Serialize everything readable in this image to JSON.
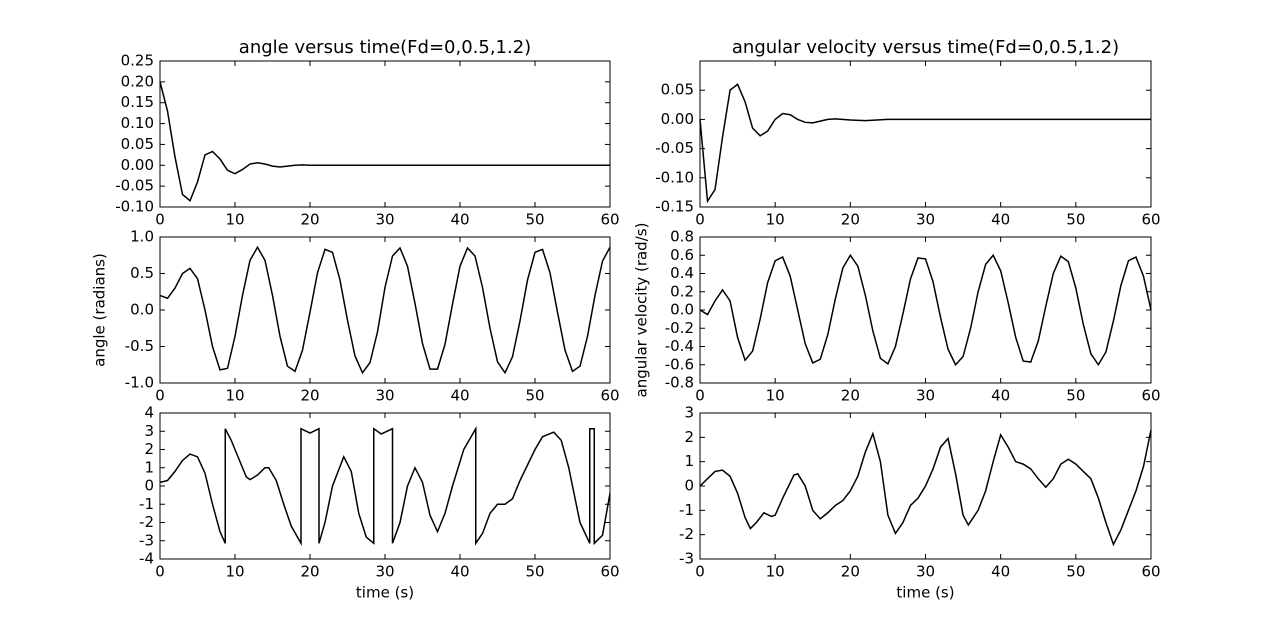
{
  "chart_data": [
    {
      "type": "line",
      "title": "angle versus time(Fd=0,0.5,1.2)",
      "color": "#000000",
      "x": [
        0,
        1,
        2,
        3,
        4,
        5,
        6,
        7,
        8,
        9,
        10,
        11,
        12,
        13,
        14,
        15,
        16,
        17,
        18,
        19,
        20,
        25,
        30,
        40,
        50,
        60
      ],
      "values": [
        0.2,
        0.13,
        0.02,
        -0.07,
        -0.085,
        -0.04,
        0.025,
        0.033,
        0.015,
        -0.012,
        -0.02,
        -0.01,
        0.003,
        0.006,
        0.003,
        -0.002,
        -0.004,
        -0.002,
        0.0,
        0.001,
        0.0,
        0,
        0,
        0,
        0,
        0
      ],
      "xlim": [
        0,
        60
      ],
      "xticks": [
        0,
        10,
        20,
        30,
        40,
        50,
        60
      ],
      "ylim": [
        -0.1,
        0.25
      ],
      "yticks": [
        {
          "value": -0.1,
          "label": "-0.10"
        },
        -0.05,
        {
          "value": 0,
          "label": "0.00"
        },
        0.05,
        {
          "value": 0.1,
          "label": "0.10"
        },
        0.15,
        {
          "value": 0.2,
          "label": "0.20"
        },
        0.25
      ]
    },
    {
      "type": "line",
      "title": "angular velocity versus time(Fd=0,0.5,1.2)",
      "color": "#000000",
      "x": [
        0,
        1,
        2,
        3,
        4,
        5,
        6,
        7,
        8,
        9,
        10,
        11,
        12,
        13,
        14,
        15,
        16,
        17,
        18,
        20,
        22,
        25,
        30,
        40,
        50,
        60
      ],
      "values": [
        0.0,
        -0.14,
        -0.12,
        -0.03,
        0.05,
        0.06,
        0.03,
        -0.015,
        -0.028,
        -0.02,
        0.0,
        0.01,
        0.008,
        0.0,
        -0.005,
        -0.006,
        -0.003,
        0.0,
        0.001,
        -0.001,
        -0.002,
        0.0,
        0.0,
        0.0,
        0.0,
        0.0
      ],
      "xlim": [
        0,
        60
      ],
      "xticks": [
        0,
        10,
        20,
        30,
        40,
        50,
        60
      ],
      "ylim": [
        -0.15,
        0.1
      ],
      "yticks": [
        -0.15,
        {
          "value": -0.1,
          "label": "-0.10"
        },
        -0.05,
        {
          "value": 0,
          "label": "0.00"
        },
        0.05
      ]
    },
    {
      "type": "line",
      "ylabel": "angle (radians)",
      "color": "#000000",
      "x": [
        0,
        1,
        2,
        3,
        4,
        5,
        6,
        7,
        8,
        9,
        10,
        11,
        12,
        13,
        14,
        15,
        16,
        17,
        18,
        19,
        20,
        21,
        22,
        23,
        24,
        25,
        26,
        27,
        28,
        29,
        30,
        31,
        32,
        33,
        34,
        35,
        36,
        37,
        38,
        39,
        40,
        41,
        42,
        43,
        44,
        45,
        46,
        47,
        48,
        49,
        50,
        51,
        52,
        53,
        54,
        55,
        56,
        57,
        58,
        59,
        60
      ],
      "values": [
        0.2,
        0.16,
        0.3,
        0.5,
        0.57,
        0.43,
        0.0,
        -0.5,
        -0.82,
        -0.8,
        -0.36,
        0.2,
        0.68,
        0.86,
        0.68,
        0.2,
        -0.36,
        -0.77,
        -0.84,
        -0.55,
        -0.03,
        0.51,
        0.83,
        0.79,
        0.41,
        -0.14,
        -0.63,
        -0.86,
        -0.72,
        -0.3,
        0.31,
        0.74,
        0.85,
        0.6,
        0.09,
        -0.46,
        -0.81,
        -0.81,
        -0.47,
        0.08,
        0.6,
        0.85,
        0.74,
        0.31,
        -0.25,
        -0.71,
        -0.86,
        -0.64,
        -0.15,
        0.41,
        0.79,
        0.83,
        0.51,
        -0.03,
        -0.55,
        -0.84,
        -0.77,
        -0.36,
        0.2,
        0.67,
        0.86
      ],
      "xlim": [
        0,
        60
      ],
      "xticks": [
        0,
        10,
        20,
        30,
        40,
        50,
        60
      ],
      "ylim": [
        -1,
        1
      ],
      "yticks": [
        {
          "value": -1,
          "label": "-1.0"
        },
        -0.5,
        {
          "value": 0,
          "label": "0.0"
        },
        0.5,
        {
          "value": 1,
          "label": "1.0"
        }
      ]
    },
    {
      "type": "line",
      "ylabel": "angular velocity (rad/s)",
      "color": "#000000",
      "x": [
        0,
        1,
        2,
        3,
        4,
        5,
        6,
        7,
        8,
        9,
        10,
        11,
        12,
        13,
        14,
        15,
        16,
        17,
        18,
        19,
        20,
        21,
        22,
        23,
        24,
        25,
        26,
        27,
        28,
        29,
        30,
        31,
        32,
        33,
        34,
        35,
        36,
        37,
        38,
        39,
        40,
        41,
        42,
        43,
        44,
        45,
        46,
        47,
        48,
        49,
        50,
        51,
        52,
        53,
        54,
        55,
        56,
        57,
        58,
        59,
        60
      ],
      "values": [
        0.0,
        -0.05,
        0.1,
        0.22,
        0.1,
        -0.3,
        -0.55,
        -0.45,
        -0.1,
        0.3,
        0.54,
        0.58,
        0.37,
        0.0,
        -0.37,
        -0.58,
        -0.54,
        -0.27,
        0.12,
        0.46,
        0.6,
        0.48,
        0.16,
        -0.23,
        -0.53,
        -0.59,
        -0.4,
        -0.04,
        0.34,
        0.57,
        0.56,
        0.31,
        -0.08,
        -0.43,
        -0.6,
        -0.51,
        -0.2,
        0.2,
        0.5,
        0.6,
        0.43,
        0.08,
        -0.3,
        -0.56,
        -0.57,
        -0.34,
        0.04,
        0.4,
        0.59,
        0.53,
        0.24,
        -0.16,
        -0.48,
        -0.6,
        -0.46,
        -0.12,
        0.27,
        0.54,
        0.58,
        0.37,
        0.0
      ],
      "xlim": [
        0,
        60
      ],
      "xticks": [
        0,
        10,
        20,
        30,
        40,
        50,
        60
      ],
      "ylim": [
        -0.8,
        0.8
      ],
      "yticks": [
        -0.8,
        -0.6,
        -0.4,
        -0.2,
        {
          "value": 0,
          "label": "0.0"
        },
        0.2,
        0.4,
        0.6,
        0.8
      ]
    },
    {
      "type": "line",
      "xlabel": "time (s)",
      "color": "#000000",
      "x": [
        0,
        1,
        2,
        3,
        4,
        5,
        6,
        7,
        8,
        8.7,
        8.7,
        9.5,
        10.5,
        11.5,
        12,
        13,
        14,
        14.5,
        15.5,
        16.5,
        17.5,
        18.8,
        18.8,
        20,
        21.2,
        21.2,
        22,
        23,
        24.5,
        25.5,
        26.5,
        27.5,
        28.5,
        28.5,
        29.5,
        31,
        31,
        32,
        33,
        34,
        35,
        36,
        37,
        38,
        39,
        40.5,
        42.1,
        42.1,
        43,
        44,
        45,
        46,
        47,
        48,
        50,
        51,
        52.5,
        53.5,
        54.5,
        56,
        57.3,
        57.3,
        57.9,
        57.9,
        59,
        60
      ],
      "values": [
        0.2,
        0.3,
        0.8,
        1.4,
        1.75,
        1.6,
        0.7,
        -1.0,
        -2.5,
        -3.14,
        3.14,
        2.5,
        1.5,
        0.5,
        0.35,
        0.6,
        1.0,
        1.0,
        0.3,
        -1.0,
        -2.2,
        -3.14,
        3.14,
        2.9,
        3.14,
        -3.14,
        -2.0,
        0.0,
        1.6,
        0.8,
        -1.5,
        -2.8,
        -3.14,
        3.14,
        2.85,
        3.14,
        -3.14,
        -2.0,
        0.0,
        1.0,
        0.2,
        -1.6,
        -2.5,
        -1.5,
        0.0,
        2.0,
        3.14,
        -3.14,
        -2.6,
        -1.5,
        -1.0,
        -1.0,
        -0.7,
        0.3,
        2.0,
        2.7,
        2.95,
        2.5,
        1.0,
        -2.0,
        -3.14,
        3.14,
        3.14,
        -3.14,
        -2.7,
        -0.4
      ],
      "xlim": [
        0,
        60
      ],
      "xticks": [
        0,
        10,
        20,
        30,
        40,
        50,
        60
      ],
      "ylim": [
        -4,
        4
      ],
      "yticks": [
        -4,
        -3,
        -2,
        -1,
        0,
        1,
        2,
        3,
        4
      ]
    },
    {
      "type": "line",
      "xlabel": "time (s)",
      "color": "#000000",
      "x": [
        0,
        1,
        2,
        3,
        4,
        5,
        6,
        6.7,
        7.5,
        8.5,
        9.5,
        10,
        11,
        12.5,
        13,
        14,
        15,
        16,
        17,
        18,
        19,
        20,
        21,
        22,
        23,
        24,
        25,
        26,
        27,
        28,
        29,
        30,
        31,
        32,
        33,
        34,
        35,
        35.7,
        37,
        38,
        39,
        40,
        41,
        42,
        43,
        44,
        45,
        46,
        47,
        48,
        49,
        50,
        51,
        52,
        53,
        54,
        55,
        56,
        57,
        58,
        59,
        60
      ],
      "values": [
        0,
        0.3,
        0.6,
        0.65,
        0.4,
        -0.3,
        -1.3,
        -1.75,
        -1.5,
        -1.1,
        -1.25,
        -1.2,
        -0.5,
        0.45,
        0.5,
        0,
        -1.0,
        -1.35,
        -1.1,
        -0.8,
        -0.6,
        -0.2,
        0.4,
        1.4,
        2.15,
        1.0,
        -1.2,
        -1.95,
        -1.5,
        -0.8,
        -0.5,
        0,
        0.7,
        1.6,
        1.95,
        0.5,
        -1.2,
        -1.6,
        -1.0,
        -0.2,
        1.0,
        2.1,
        1.6,
        1.0,
        0.9,
        0.7,
        0.3,
        -0.05,
        0.3,
        0.9,
        1.1,
        0.9,
        0.6,
        0.3,
        -0.5,
        -1.5,
        -2.4,
        -1.8,
        -1.0,
        -0.2,
        0.8,
        2.3
      ],
      "xlim": [
        0,
        60
      ],
      "xticks": [
        0,
        10,
        20,
        30,
        40,
        50,
        60
      ],
      "ylim": [
        -3,
        3
      ],
      "yticks": [
        -3,
        -2,
        -1,
        0,
        1,
        2,
        3
      ]
    }
  ]
}
